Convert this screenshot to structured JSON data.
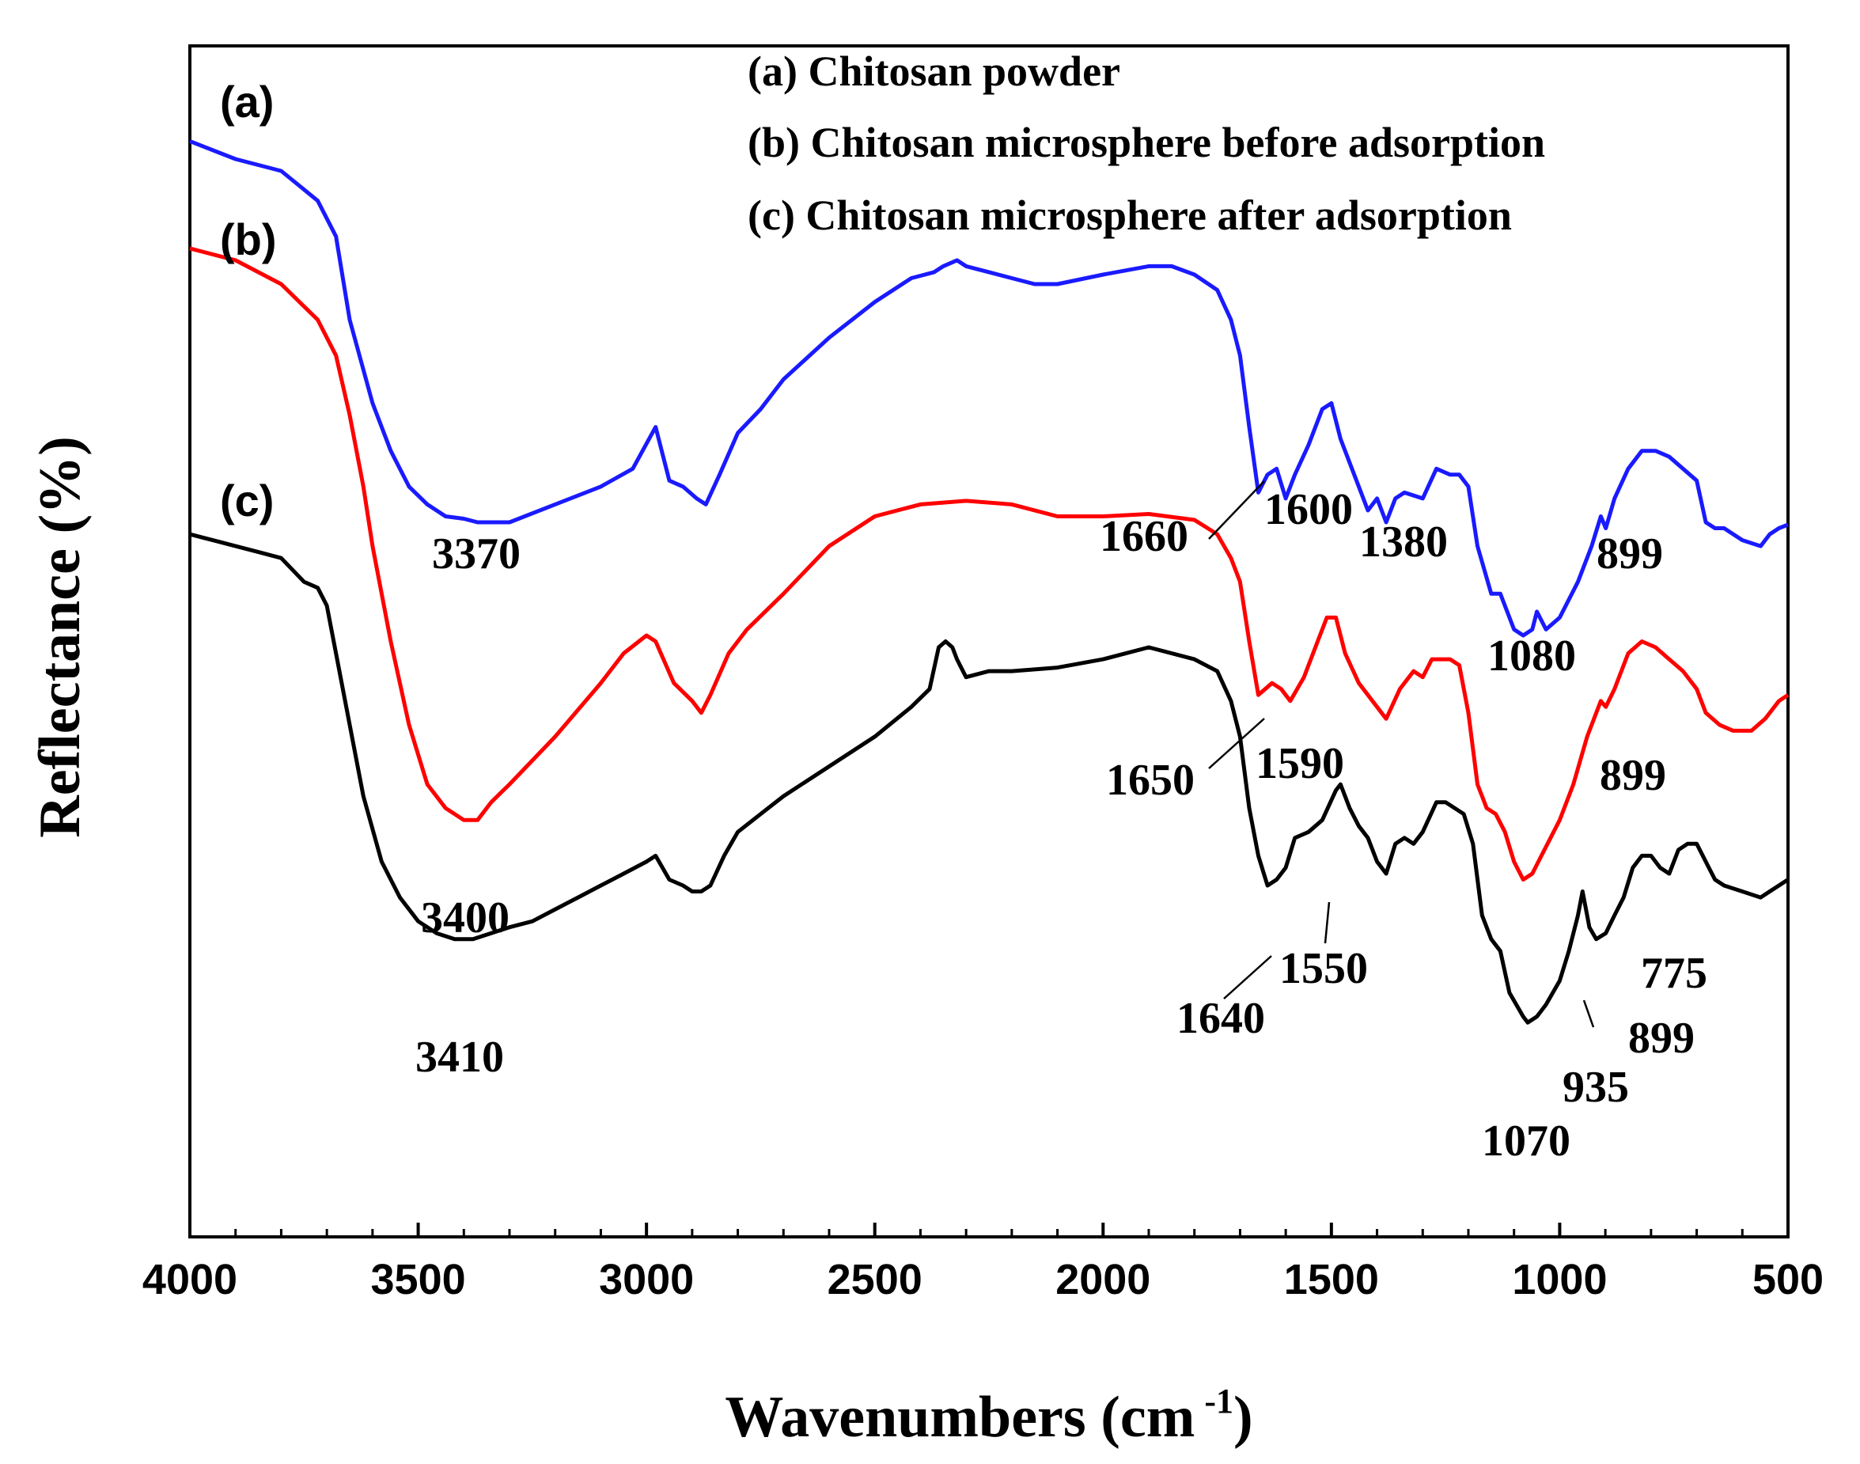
{
  "chart_data": {
    "type": "line",
    "title": "",
    "xlabel": "Wavenumbers (cm",
    "xlabel_superscript": "-1",
    "xlabel_suffix": ")",
    "ylabel": "Reflectance  (%)",
    "xlim": [
      4000,
      500
    ],
    "ylim": [
      0,
      100
    ],
    "x_ticks": [
      4000,
      3500,
      3000,
      2500,
      2000,
      1500,
      1000,
      500
    ],
    "x_tick_labels": [
      "4000",
      "3500",
      "3000",
      "2500",
      "2000",
      "1500",
      "1000",
      "500"
    ],
    "y_ticks_shown": false,
    "grid": false,
    "legend": {
      "position": "top-center",
      "entries": [
        "(a) Chitosan powder",
        "(b) Chitosan microsphere before adsorption",
        "(c) Chitosan microsphere after adsorption"
      ]
    },
    "series": [
      {
        "name": "(a)",
        "description": "Chitosan powder",
        "color": "#1a1aff",
        "points": [
          [
            4000,
            92
          ],
          [
            3900,
            90.5
          ],
          [
            3800,
            89.5
          ],
          [
            3720,
            87
          ],
          [
            3680,
            84
          ],
          [
            3650,
            77
          ],
          [
            3600,
            70
          ],
          [
            3560,
            66
          ],
          [
            3520,
            63
          ],
          [
            3480,
            61.5
          ],
          [
            3440,
            60.5
          ],
          [
            3400,
            60.3
          ],
          [
            3370,
            60
          ],
          [
            3300,
            60
          ],
          [
            3200,
            61.5
          ],
          [
            3100,
            63
          ],
          [
            3030,
            64.5
          ],
          [
            2980,
            68
          ],
          [
            2950,
            63.5
          ],
          [
            2920,
            63
          ],
          [
            2890,
            62
          ],
          [
            2870,
            61.5
          ],
          [
            2840,
            64
          ],
          [
            2800,
            67.5
          ],
          [
            2750,
            69.5
          ],
          [
            2700,
            72
          ],
          [
            2600,
            75.5
          ],
          [
            2500,
            78.5
          ],
          [
            2420,
            80.5
          ],
          [
            2370,
            81
          ],
          [
            2350,
            81.5
          ],
          [
            2320,
            82
          ],
          [
            2300,
            81.5
          ],
          [
            2250,
            81
          ],
          [
            2200,
            80.5
          ],
          [
            2150,
            80
          ],
          [
            2100,
            80
          ],
          [
            2000,
            80.8
          ],
          [
            1900,
            81.5
          ],
          [
            1850,
            81.5
          ],
          [
            1800,
            80.8
          ],
          [
            1750,
            79.5
          ],
          [
            1720,
            77
          ],
          [
            1700,
            74
          ],
          [
            1680,
            68
          ],
          [
            1660,
            62.5
          ],
          [
            1640,
            64
          ],
          [
            1620,
            64.5
          ],
          [
            1600,
            62
          ],
          [
            1580,
            64
          ],
          [
            1550,
            66.5
          ],
          [
            1520,
            69.5
          ],
          [
            1500,
            70
          ],
          [
            1480,
            67
          ],
          [
            1450,
            64
          ],
          [
            1420,
            61
          ],
          [
            1400,
            62
          ],
          [
            1380,
            60
          ],
          [
            1360,
            62
          ],
          [
            1340,
            62.5
          ],
          [
            1300,
            62
          ],
          [
            1270,
            64.5
          ],
          [
            1240,
            64
          ],
          [
            1220,
            64
          ],
          [
            1200,
            63
          ],
          [
            1180,
            58
          ],
          [
            1150,
            54
          ],
          [
            1130,
            54
          ],
          [
            1100,
            51
          ],
          [
            1080,
            50.5
          ],
          [
            1060,
            51
          ],
          [
            1050,
            52.5
          ],
          [
            1030,
            51
          ],
          [
            1000,
            52
          ],
          [
            960,
            55
          ],
          [
            930,
            58
          ],
          [
            910,
            60.5
          ],
          [
            899,
            59.5
          ],
          [
            880,
            62
          ],
          [
            850,
            64.5
          ],
          [
            820,
            66
          ],
          [
            790,
            66
          ],
          [
            760,
            65.5
          ],
          [
            730,
            64.5
          ],
          [
            700,
            63.5
          ],
          [
            680,
            60
          ],
          [
            660,
            59.5
          ],
          [
            640,
            59.5
          ],
          [
            600,
            58.5
          ],
          [
            560,
            58
          ],
          [
            540,
            59
          ],
          [
            520,
            59.5
          ],
          [
            500,
            59.8
          ]
        ]
      },
      {
        "name": "(b)",
        "description": "Chitosan microsphere before adsorption",
        "color": "#ff0000",
        "points": [
          [
            4000,
            83
          ],
          [
            3900,
            82
          ],
          [
            3800,
            80
          ],
          [
            3720,
            77
          ],
          [
            3680,
            74
          ],
          [
            3650,
            69
          ],
          [
            3620,
            63
          ],
          [
            3600,
            58
          ],
          [
            3560,
            50
          ],
          [
            3520,
            43
          ],
          [
            3480,
            38
          ],
          [
            3440,
            36
          ],
          [
            3400,
            35
          ],
          [
            3370,
            35
          ],
          [
            3340,
            36.5
          ],
          [
            3300,
            38
          ],
          [
            3200,
            42
          ],
          [
            3100,
            46.5
          ],
          [
            3050,
            49
          ],
          [
            3000,
            50.5
          ],
          [
            2980,
            50
          ],
          [
            2940,
            46.5
          ],
          [
            2900,
            45
          ],
          [
            2880,
            44
          ],
          [
            2860,
            45.5
          ],
          [
            2820,
            49
          ],
          [
            2780,
            51
          ],
          [
            2700,
            54
          ],
          [
            2600,
            58
          ],
          [
            2500,
            60.5
          ],
          [
            2400,
            61.5
          ],
          [
            2300,
            61.8
          ],
          [
            2200,
            61.5
          ],
          [
            2100,
            60.5
          ],
          [
            2000,
            60.5
          ],
          [
            1900,
            60.7
          ],
          [
            1800,
            60.2
          ],
          [
            1750,
            59
          ],
          [
            1720,
            57
          ],
          [
            1700,
            55
          ],
          [
            1680,
            50
          ],
          [
            1660,
            45.5
          ],
          [
            1630,
            46.5
          ],
          [
            1610,
            46
          ],
          [
            1590,
            45
          ],
          [
            1560,
            47
          ],
          [
            1530,
            50
          ],
          [
            1510,
            52
          ],
          [
            1490,
            52
          ],
          [
            1470,
            49
          ],
          [
            1440,
            46.5
          ],
          [
            1410,
            45
          ],
          [
            1390,
            44
          ],
          [
            1380,
            43.5
          ],
          [
            1350,
            46
          ],
          [
            1320,
            47.5
          ],
          [
            1300,
            47
          ],
          [
            1280,
            48.5
          ],
          [
            1260,
            48.5
          ],
          [
            1240,
            48.5
          ],
          [
            1220,
            48
          ],
          [
            1200,
            44
          ],
          [
            1180,
            38
          ],
          [
            1160,
            36
          ],
          [
            1140,
            35.5
          ],
          [
            1120,
            34
          ],
          [
            1100,
            31.5
          ],
          [
            1080,
            30
          ],
          [
            1060,
            30.5
          ],
          [
            1040,
            32
          ],
          [
            1000,
            35
          ],
          [
            970,
            38
          ],
          [
            940,
            42
          ],
          [
            910,
            45
          ],
          [
            899,
            44.5
          ],
          [
            880,
            46
          ],
          [
            850,
            49
          ],
          [
            820,
            50
          ],
          [
            790,
            49.5
          ],
          [
            760,
            48.5
          ],
          [
            730,
            47.5
          ],
          [
            700,
            46
          ],
          [
            680,
            44
          ],
          [
            650,
            43
          ],
          [
            620,
            42.5
          ],
          [
            580,
            42.5
          ],
          [
            550,
            43.5
          ],
          [
            520,
            45
          ],
          [
            500,
            45.5
          ]
        ]
      },
      {
        "name": "(c)",
        "description": "Chitosan microsphere after adsorption",
        "color": "#000000",
        "points": [
          [
            4000,
            59
          ],
          [
            3950,
            58.5
          ],
          [
            3900,
            58
          ],
          [
            3850,
            57.5
          ],
          [
            3800,
            57
          ],
          [
            3750,
            55
          ],
          [
            3720,
            54.5
          ],
          [
            3700,
            53
          ],
          [
            3680,
            49
          ],
          [
            3650,
            43
          ],
          [
            3620,
            37
          ],
          [
            3580,
            31.5
          ],
          [
            3540,
            28.5
          ],
          [
            3500,
            26.5
          ],
          [
            3460,
            25.5
          ],
          [
            3420,
            25
          ],
          [
            3380,
            25
          ],
          [
            3340,
            25.5
          ],
          [
            3300,
            26
          ],
          [
            3250,
            26.5
          ],
          [
            3200,
            27.5
          ],
          [
            3150,
            28.5
          ],
          [
            3100,
            29.5
          ],
          [
            3050,
            30.5
          ],
          [
            3000,
            31.5
          ],
          [
            2980,
            32
          ],
          [
            2950,
            30
          ],
          [
            2920,
            29.5
          ],
          [
            2900,
            29
          ],
          [
            2880,
            29
          ],
          [
            2860,
            29.5
          ],
          [
            2830,
            32
          ],
          [
            2800,
            34
          ],
          [
            2750,
            35.5
          ],
          [
            2700,
            37
          ],
          [
            2600,
            39.5
          ],
          [
            2500,
            42
          ],
          [
            2420,
            44.5
          ],
          [
            2380,
            46
          ],
          [
            2360,
            49.5
          ],
          [
            2345,
            50
          ],
          [
            2330,
            49.5
          ],
          [
            2320,
            48.5
          ],
          [
            2300,
            47
          ],
          [
            2250,
            47.5
          ],
          [
            2200,
            47.5
          ],
          [
            2100,
            47.8
          ],
          [
            2000,
            48.5
          ],
          [
            1900,
            49.5
          ],
          [
            1800,
            48.5
          ],
          [
            1750,
            47.5
          ],
          [
            1720,
            45
          ],
          [
            1700,
            42
          ],
          [
            1680,
            36
          ],
          [
            1660,
            32
          ],
          [
            1640,
            29.5
          ],
          [
            1620,
            30
          ],
          [
            1600,
            31
          ],
          [
            1580,
            33.5
          ],
          [
            1550,
            34
          ],
          [
            1520,
            35
          ],
          [
            1490,
            37.5
          ],
          [
            1480,
            38
          ],
          [
            1460,
            36
          ],
          [
            1440,
            34.5
          ],
          [
            1420,
            33.5
          ],
          [
            1400,
            31.5
          ],
          [
            1380,
            30.5
          ],
          [
            1360,
            33
          ],
          [
            1340,
            33.5
          ],
          [
            1320,
            33
          ],
          [
            1300,
            34
          ],
          [
            1270,
            36.5
          ],
          [
            1250,
            36.5
          ],
          [
            1230,
            36
          ],
          [
            1210,
            35.5
          ],
          [
            1190,
            33
          ],
          [
            1170,
            27
          ],
          [
            1150,
            25
          ],
          [
            1130,
            24
          ],
          [
            1110,
            20.5
          ],
          [
            1080,
            18.5
          ],
          [
            1070,
            18
          ],
          [
            1050,
            18.5
          ],
          [
            1030,
            19.5
          ],
          [
            1000,
            21.5
          ],
          [
            980,
            24
          ],
          [
            960,
            27
          ],
          [
            950,
            29
          ],
          [
            940,
            27
          ],
          [
            935,
            26
          ],
          [
            920,
            25
          ],
          [
            899,
            25.5
          ],
          [
            880,
            27
          ],
          [
            860,
            28.5
          ],
          [
            840,
            31
          ],
          [
            820,
            32
          ],
          [
            800,
            32
          ],
          [
            780,
            31
          ],
          [
            760,
            30.5
          ],
          [
            740,
            32.5
          ],
          [
            720,
            33
          ],
          [
            700,
            33
          ],
          [
            680,
            31.5
          ],
          [
            660,
            30
          ],
          [
            640,
            29.5
          ],
          [
            600,
            29
          ],
          [
            560,
            28.5
          ],
          [
            540,
            29
          ],
          [
            520,
            29.5
          ],
          [
            500,
            30
          ]
        ]
      }
    ],
    "curve_labels": [
      "(a)",
      "(b)",
      "(c)"
    ],
    "peak_labels": [
      "3370",
      "1660",
      "1600",
      "1380",
      "1080",
      "899",
      "3400",
      "1650",
      "1590",
      "899",
      "3410",
      "1640",
      "1550",
      "775",
      "899",
      "935",
      "1070"
    ]
  }
}
